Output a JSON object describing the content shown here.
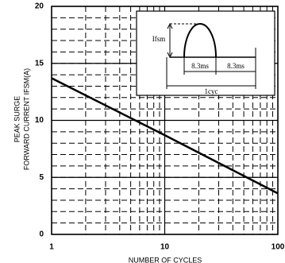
{
  "chart_data": {
    "type": "line",
    "y_label_lines": [
      "PEAK SURGE",
      "FORWARD CURRENT IFSM(A)"
    ],
    "x_label": "NUMBER OF CYCLES",
    "x": [
      1,
      10,
      100
    ],
    "series": [
      {
        "color": "#000000",
        "values": [
          13.7,
          8.7,
          3.6
        ]
      }
    ],
    "xlim": [
      1,
      100
    ],
    "xticks": [
      1,
      10,
      100
    ],
    "x_log": true,
    "ylim": [
      0,
      20
    ],
    "yticks": [
      0,
      5,
      10,
      15,
      20
    ],
    "grid": true,
    "inset_labels": [
      "Ifsm",
      "8.3ms",
      "8.3ms",
      "1cyc"
    ]
  }
}
